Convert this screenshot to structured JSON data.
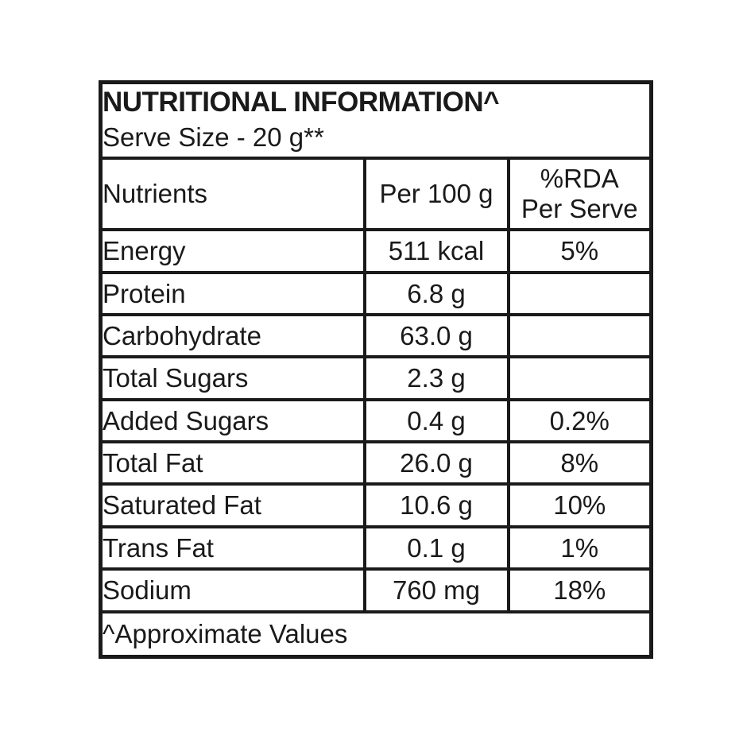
{
  "colors": {
    "background": "#ffffff",
    "border": "#1a1a1a",
    "text": "#1a1a1a"
  },
  "header": {
    "title": "NUTRITIONAL INFORMATION^",
    "serve_size": "Serve Size - 20 g**"
  },
  "columns": {
    "nutrients": "Nutrients",
    "per_100g": "Per 100 g",
    "rda_line1": "%RDA",
    "rda_line2": "Per Serve"
  },
  "rows": [
    {
      "nutrient": "Energy",
      "indent": 0,
      "per_100g": "511 kcal",
      "rda_per_serve": "5%"
    },
    {
      "nutrient": "Protein",
      "indent": 0,
      "per_100g": "6.8 g",
      "rda_per_serve": ""
    },
    {
      "nutrient": "Carbohydrate",
      "indent": 0,
      "per_100g": "63.0 g",
      "rda_per_serve": ""
    },
    {
      "nutrient": "Total Sugars",
      "indent": 1,
      "per_100g": "2.3 g",
      "rda_per_serve": ""
    },
    {
      "nutrient": "Added Sugars",
      "indent": 2,
      "per_100g": "0.4 g",
      "rda_per_serve": "0.2%"
    },
    {
      "nutrient": "Total Fat",
      "indent": 0,
      "per_100g": "26.0 g",
      "rda_per_serve": "8%"
    },
    {
      "nutrient": "Saturated Fat",
      "indent": 1,
      "per_100g": "10.6 g",
      "rda_per_serve": "10%"
    },
    {
      "nutrient": "Trans Fat",
      "indent": 1,
      "per_100g": "0.1 g",
      "rda_per_serve": "1%"
    },
    {
      "nutrient": "Sodium",
      "indent": 0,
      "per_100g": "760 mg",
      "rda_per_serve": "18%"
    }
  ],
  "footer": {
    "note": "^Approximate Values"
  }
}
